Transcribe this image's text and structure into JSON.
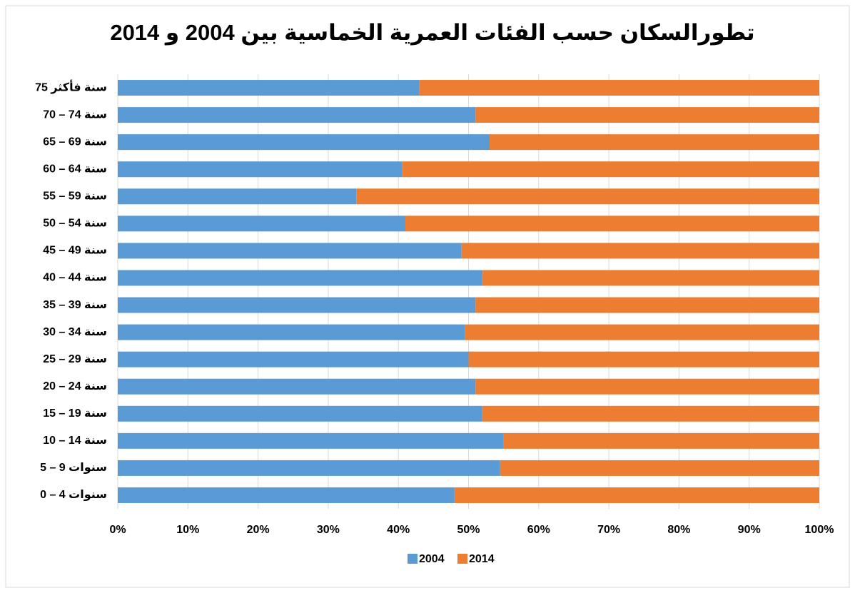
{
  "chart_data": {
    "type": "bar",
    "orientation": "horizontal",
    "stacked": "percent",
    "title": "تطورالسكان حسب الفئات العمرية الخماسية بين 2004 و 2014",
    "categories": [
      "75 سنة فأكثر",
      "70 – 74 سنة",
      "65 – 69 سنة",
      "60 – 64 سنة",
      "55 – 59 سنة",
      "50 – 54 سنة",
      "45 – 49 سنة",
      "40 – 44 سنة",
      "35 – 39 سنة",
      "30 – 34 سنة",
      "25 – 29 سنة",
      "20 – 24 سنة",
      "15 – 19 سنة",
      "10 – 14 سنة",
      "5 – 9 سنوات",
      "0 – 4 سنوات"
    ],
    "series": [
      {
        "name": "2004",
        "color": "#5b9bd5",
        "values": [
          43,
          51,
          53,
          40.5,
          34,
          41,
          49,
          52,
          51,
          49.5,
          50,
          51,
          52,
          55,
          54.5,
          48
        ]
      },
      {
        "name": "2014",
        "color": "#ed7d31",
        "values": [
          57,
          49,
          47,
          59.5,
          66,
          59,
          51,
          48,
          49,
          50.5,
          50,
          49,
          48,
          45,
          45.5,
          52
        ]
      }
    ],
    "xlim": [
      0,
      100
    ],
    "xticks": [
      {
        "value": 0,
        "label": "0%"
      },
      {
        "value": 10,
        "label": "10%"
      },
      {
        "value": 20,
        "label": "20%"
      },
      {
        "value": 30,
        "label": "30%"
      },
      {
        "value": 40,
        "label": "40%"
      },
      {
        "value": 50,
        "label": "50%"
      },
      {
        "value": 60,
        "label": "60%"
      },
      {
        "value": 70,
        "label": "70%"
      },
      {
        "value": 80,
        "label": "80%"
      },
      {
        "value": 90,
        "label": "90%"
      },
      {
        "value": 100,
        "label": "100%"
      }
    ],
    "grid": true,
    "legend": "bottom"
  }
}
